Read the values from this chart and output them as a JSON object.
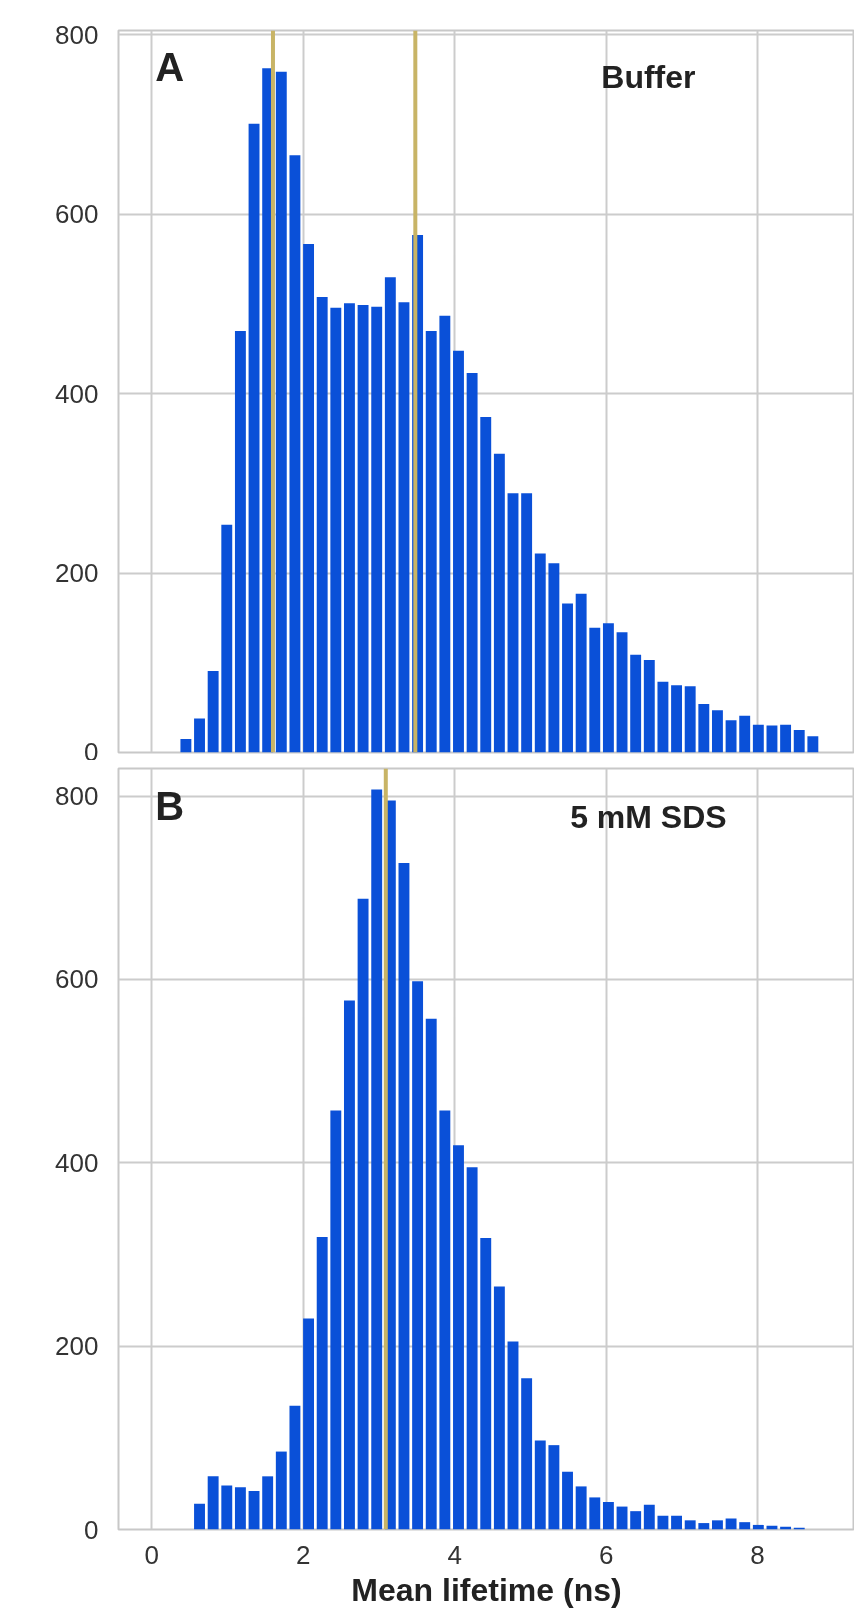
{
  "chart_data": [
    {
      "type": "histogram",
      "annotations": [
        "A",
        "Buffer"
      ],
      "bins": [
        0.36,
        0.54,
        0.72,
        0.9,
        1.08,
        1.26,
        1.44,
        1.62,
        1.8,
        1.98,
        2.16,
        2.34,
        2.52,
        2.7,
        2.88,
        3.06,
        3.24,
        3.42,
        3.6,
        3.78,
        3.96,
        4.14,
        4.32,
        4.5,
        4.68,
        4.86,
        5.04,
        5.22,
        5.4,
        5.58,
        5.76,
        5.94,
        6.12,
        6.3,
        6.48,
        6.66,
        6.84,
        7.02,
        7.2,
        7.38,
        7.56,
        7.74,
        7.92,
        8.1,
        8.28,
        8.46,
        8.64,
        8.82,
        9.0
      ],
      "values": [
        15,
        38,
        91,
        254,
        470,
        701,
        763,
        759,
        666,
        567,
        508,
        496,
        501,
        499,
        497,
        530,
        502,
        577,
        470,
        487,
        448,
        423,
        374,
        333,
        289,
        289,
        222,
        211,
        166,
        177,
        139,
        144,
        134,
        109,
        103,
        79,
        75,
        74,
        54,
        47,
        36,
        41,
        31,
        30,
        31,
        25,
        18,
        0
      ],
      "color": "#0a50d8",
      "xlim": [
        -0.44,
        9.28
      ],
      "xticks": [
        0,
        2,
        4,
        6,
        8
      ],
      "ylim": [
        0,
        805
      ],
      "yticks": [
        0,
        200,
        400,
        600,
        800
      ],
      "grid": true,
      "tick_labels": "y",
      "ref_lines": [
        {
          "axis": "x",
          "value": 1.6,
          "color": "#c8b466"
        },
        {
          "axis": "x",
          "value": 3.48,
          "color": "#c8b466"
        }
      ]
    },
    {
      "type": "histogram",
      "annotations": [
        "B",
        "5 mM SDS"
      ],
      "xlabel": "Mean lifetime (ns)",
      "bins": [
        0.36,
        0.54,
        0.72,
        0.9,
        1.08,
        1.26,
        1.44,
        1.62,
        1.8,
        1.98,
        2.16,
        2.34,
        2.52,
        2.7,
        2.88,
        3.06,
        3.24,
        3.42,
        3.6,
        3.78,
        3.96,
        4.14,
        4.32,
        4.5,
        4.68,
        4.86,
        5.04,
        5.22,
        5.4,
        5.58,
        5.76,
        5.94,
        6.12,
        6.3,
        6.48,
        6.66,
        6.84,
        7.02,
        7.2,
        7.38,
        7.56,
        7.74,
        7.92,
        8.1,
        8.28,
        8.46,
        8.64,
        8.82,
        9.0
      ],
      "values": [
        0,
        28,
        58,
        48,
        46,
        42,
        58,
        85,
        135,
        230,
        319,
        457,
        577,
        688,
        807,
        795,
        727,
        598,
        557,
        457,
        419,
        395,
        318,
        265,
        205,
        165,
        97,
        92,
        63,
        47,
        35,
        30,
        25,
        20,
        27,
        15,
        15,
        10,
        7,
        10,
        12,
        8,
        5,
        4,
        3,
        2,
        null,
        0
      ],
      "color": "#0a50d8",
      "xlim": [
        -0.44,
        9.28
      ],
      "xticks": [
        0,
        2,
        4,
        6,
        8
      ],
      "ylim": [
        0,
        830
      ],
      "yticks": [
        0,
        200,
        400,
        600,
        800
      ],
      "grid": true,
      "ref_lines": [
        {
          "axis": "x",
          "value": 3.09,
          "color": "#c8b466"
        }
      ]
    }
  ]
}
